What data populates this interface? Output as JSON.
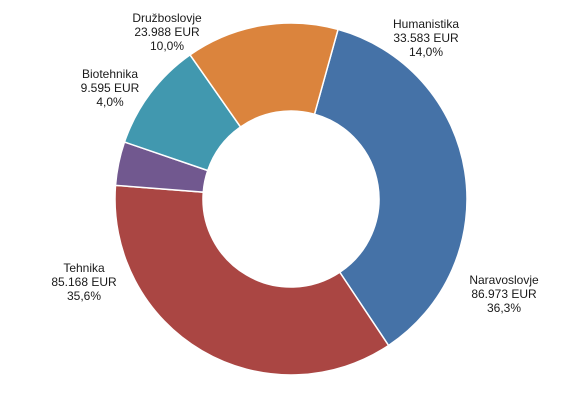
{
  "chart_data": {
    "type": "pie",
    "variant": "donut",
    "title": "",
    "currency": "EUR",
    "colors": [
      "#4572A7",
      "#AA4643",
      "#71588F",
      "#4198AF",
      "#DB843D"
    ],
    "slices": [
      {
        "name": "Naravoslovje",
        "value": 86973,
        "value_label": "86.973 EUR",
        "percent": 36.3,
        "percent_label": "36,3%",
        "color": "#4572A7"
      },
      {
        "name": "Tehnika",
        "value": 85168,
        "value_label": "85.168 EUR",
        "percent": 35.6,
        "percent_label": "35,6%",
        "color": "#AA4643"
      },
      {
        "name": "Biotehnika",
        "value": 9595,
        "value_label": "9.595 EUR",
        "percent": 4.0,
        "percent_label": "4,0%",
        "color": "#71588F"
      },
      {
        "name": "Družboslovje",
        "value": 23988,
        "value_label": "23.988 EUR",
        "percent": 10.0,
        "percent_label": "10,0%",
        "color": "#4198AF"
      },
      {
        "name": "Humanistika",
        "value": 33583,
        "value_label": "33.583 EUR",
        "percent": 14.0,
        "percent_label": "14,0%",
        "color": "#DB843D"
      }
    ]
  }
}
